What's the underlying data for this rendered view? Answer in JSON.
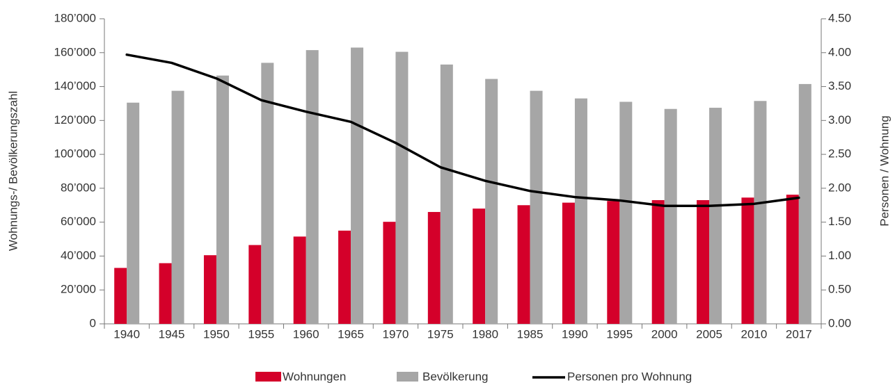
{
  "chart_data": {
    "type": "bar-line",
    "y_label": "Wohnungs-/ Bevölkerungszahl",
    "y2_label": "Personen / Wohnung",
    "categories": [
      "1940",
      "1945",
      "1950",
      "1955",
      "1960",
      "1965",
      "1970",
      "1975",
      "1980",
      "1985",
      "1990",
      "1995",
      "2000",
      "2005",
      "2010",
      "2017"
    ],
    "series": [
      {
        "name": "Wohnungen",
        "color": "#d4002a",
        "kind": "bar",
        "values": [
          33000,
          35800,
          40500,
          46500,
          51500,
          55000,
          60200,
          66000,
          68000,
          70000,
          71500,
          72500,
          73000,
          73000,
          74500,
          76200
        ]
      },
      {
        "name": "Bevölkerung",
        "color": "#a6a6a6",
        "kind": "bar",
        "values": [
          130500,
          137500,
          146500,
          154000,
          161500,
          163000,
          160500,
          153000,
          144500,
          137500,
          133000,
          131000,
          126800,
          127500,
          131500,
          141500
        ]
      },
      {
        "name": "Personen pro Wohnung",
        "color": "#000000",
        "kind": "line",
        "axis": "y2",
        "values": [
          3.97,
          3.85,
          3.62,
          3.3,
          3.13,
          2.98,
          2.67,
          2.31,
          2.11,
          1.96,
          1.87,
          1.82,
          1.74,
          1.74,
          1.77,
          1.86
        ]
      }
    ],
    "ylim": [
      0,
      180000
    ],
    "yticks": [
      0,
      {
        "value": 20000,
        "label": "20’000"
      },
      {
        "value": 40000,
        "label": "40’000"
      },
      {
        "value": 60000,
        "label": "60’000"
      },
      {
        "value": 80000,
        "label": "80’000"
      },
      {
        "value": 100000,
        "label": "100’000"
      },
      {
        "value": 120000,
        "label": "120’000"
      },
      {
        "value": 140000,
        "label": "140’000"
      },
      {
        "value": 160000,
        "label": "160’000"
      },
      {
        "value": 180000,
        "label": "180’000"
      }
    ],
    "y2lim": [
      0,
      4.5
    ],
    "y2ticks": [
      {
        "value": 0,
        "label": "0.00"
      },
      {
        "value": 0.5,
        "label": "0.50"
      },
      {
        "value": 1,
        "label": "1.00"
      },
      {
        "value": 1.5,
        "label": "1.50"
      },
      {
        "value": 2,
        "label": "2.00"
      },
      {
        "value": 2.5,
        "label": "2.50"
      },
      {
        "value": 3,
        "label": "3.00"
      },
      {
        "value": 3.5,
        "label": "3.50"
      },
      {
        "value": 4,
        "label": "4.00"
      },
      {
        "value": 4.5,
        "label": "4.50"
      }
    ],
    "legend": "bottom"
  }
}
